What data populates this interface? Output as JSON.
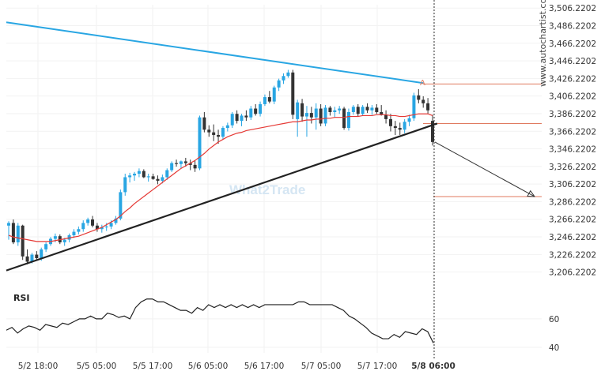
{
  "chart_data": {
    "type": "candlestick",
    "y_axis": {
      "labels": [
        "3,506.2202",
        "3,486.2202",
        "3,466.2202",
        "3,446.2202",
        "3,426.2202",
        "3,406.2202",
        "3,386.2202",
        "3,366.2202",
        "3,346.2202",
        "3,326.2202",
        "3,306.2202",
        "3,286.2202",
        "3,266.2202",
        "3,246.2202",
        "3,226.2202",
        "3,206.2202"
      ],
      "range": [
        3196,
        3510
      ],
      "position": "right"
    },
    "x_axis": {
      "labels": [
        "5/2 18:00",
        "5/5 05:00",
        "5/5 17:00",
        "5/6 05:00",
        "5/6 17:00",
        "5/7 05:00",
        "5/7 17:00",
        "5/8 06:00"
      ],
      "highlight": "5/8 06:00"
    },
    "candles": [
      [
        3259,
        3264,
        3243,
        3262
      ],
      [
        3262,
        3266,
        3238,
        3240
      ],
      [
        3240,
        3262,
        3236,
        3259
      ],
      [
        3259,
        3260,
        3220,
        3224
      ],
      [
        3224,
        3232,
        3215,
        3218
      ],
      [
        3218,
        3228,
        3216,
        3226
      ],
      [
        3226,
        3230,
        3220,
        3222
      ],
      [
        3222,
        3234,
        3219,
        3232
      ],
      [
        3232,
        3240,
        3229,
        3238
      ],
      [
        3238,
        3246,
        3236,
        3244
      ],
      [
        3244,
        3250,
        3240,
        3247
      ],
      [
        3247,
        3249,
        3238,
        3240
      ],
      [
        3240,
        3245,
        3236,
        3243
      ],
      [
        3243,
        3250,
        3240,
        3248
      ],
      [
        3248,
        3255,
        3245,
        3252
      ],
      [
        3252,
        3258,
        3249,
        3255
      ],
      [
        3255,
        3265,
        3252,
        3262
      ],
      [
        3262,
        3268,
        3259,
        3266
      ],
      [
        3266,
        3270,
        3257,
        3259
      ],
      [
        3259,
        3262,
        3252,
        3255
      ],
      [
        3255,
        3260,
        3251,
        3257
      ],
      [
        3257,
        3262,
        3253,
        3258
      ],
      [
        3258,
        3265,
        3255,
        3262
      ],
      [
        3262,
        3270,
        3260,
        3267
      ],
      [
        3267,
        3300,
        3265,
        3297
      ],
      [
        3297,
        3318,
        3293,
        3314
      ],
      [
        3314,
        3319,
        3308,
        3316
      ],
      [
        3316,
        3320,
        3310,
        3318
      ],
      [
        3318,
        3324,
        3314,
        3321
      ],
      [
        3321,
        3323,
        3313,
        3314
      ],
      [
        3314,
        3318,
        3309,
        3315
      ],
      [
        3315,
        3318,
        3311,
        3312
      ],
      [
        3312,
        3316,
        3306,
        3310
      ],
      [
        3310,
        3317,
        3307,
        3314
      ],
      [
        3314,
        3324,
        3311,
        3322
      ],
      [
        3322,
        3332,
        3320,
        3330
      ],
      [
        3330,
        3334,
        3326,
        3329
      ],
      [
        3329,
        3333,
        3324,
        3332
      ],
      [
        3332,
        3336,
        3326,
        3330
      ],
      [
        3330,
        3334,
        3322,
        3328
      ],
      [
        3328,
        3333,
        3320,
        3324
      ],
      [
        3324,
        3384,
        3322,
        3382
      ],
      [
        3382,
        3388,
        3365,
        3368
      ],
      [
        3368,
        3373,
        3360,
        3365
      ],
      [
        3365,
        3374,
        3355,
        3362
      ],
      [
        3362,
        3368,
        3352,
        3360
      ],
      [
        3360,
        3372,
        3357,
        3370
      ],
      [
        3370,
        3376,
        3366,
        3373
      ],
      [
        3373,
        3388,
        3370,
        3386
      ],
      [
        3386,
        3390,
        3375,
        3378
      ],
      [
        3378,
        3386,
        3372,
        3384
      ],
      [
        3384,
        3390,
        3378,
        3382
      ],
      [
        3382,
        3395,
        3379,
        3392
      ],
      [
        3392,
        3397,
        3384,
        3386
      ],
      [
        3386,
        3400,
        3383,
        3397
      ],
      [
        3397,
        3408,
        3395,
        3405
      ],
      [
        3405,
        3412,
        3398,
        3400
      ],
      [
        3400,
        3418,
        3397,
        3416
      ],
      [
        3416,
        3426,
        3412,
        3424
      ],
      [
        3424,
        3432,
        3420,
        3429
      ],
      [
        3429,
        3436,
        3427,
        3433
      ],
      [
        3433,
        3436,
        3380,
        3385
      ],
      [
        3380,
        3402,
        3360,
        3399
      ],
      [
        3398,
        3403,
        3377,
        3383
      ],
      [
        3383,
        3395,
        3360,
        3387
      ],
      [
        3387,
        3394,
        3375,
        3382
      ],
      [
        3382,
        3398,
        3368,
        3392
      ],
      [
        3392,
        3397,
        3372,
        3375
      ],
      [
        3375,
        3396,
        3372,
        3393
      ],
      [
        3393,
        3395,
        3384,
        3388
      ],
      [
        3388,
        3394,
        3382,
        3390
      ],
      [
        3390,
        3395,
        3386,
        3392
      ],
      [
        3392,
        3394,
        3368,
        3370
      ],
      [
        3370,
        3392,
        3367,
        3388
      ],
      [
        3388,
        3396,
        3385,
        3394
      ],
      [
        3394,
        3397,
        3383,
        3386
      ],
      [
        3386,
        3396,
        3384,
        3394
      ],
      [
        3394,
        3398,
        3387,
        3390
      ],
      [
        3390,
        3396,
        3385,
        3393
      ],
      [
        3393,
        3397,
        3386,
        3388
      ],
      [
        3388,
        3396,
        3384,
        3385
      ],
      [
        3385,
        3390,
        3375,
        3380
      ],
      [
        3380,
        3386,
        3366,
        3372
      ],
      [
        3372,
        3378,
        3362,
        3370
      ],
      [
        3370,
        3376,
        3362,
        3368
      ],
      [
        3368,
        3380,
        3364,
        3377
      ],
      [
        3377,
        3385,
        3372,
        3381
      ],
      [
        3381,
        3410,
        3378,
        3407
      ],
      [
        3407,
        3414,
        3398,
        3402
      ],
      [
        3402,
        3406,
        3393,
        3398
      ],
      [
        3398,
        3404,
        3386,
        3390
      ],
      [
        3378,
        3385,
        3350,
        3354
      ]
    ],
    "moving_average": [
      3248,
      3246,
      3245,
      3244,
      3243,
      3242,
      3241,
      3241,
      3241,
      3241,
      3242,
      3243,
      3244,
      3245,
      3246,
      3247,
      3249,
      3251,
      3253,
      3255,
      3257,
      3260,
      3263,
      3266,
      3270,
      3275,
      3279,
      3284,
      3288,
      3292,
      3296,
      3300,
      3304,
      3308,
      3312,
      3316,
      3320,
      3324,
      3327,
      3330,
      3333,
      3337,
      3341,
      3346,
      3350,
      3354,
      3357,
      3360,
      3362,
      3364,
      3365,
      3367,
      3368,
      3369,
      3370,
      3371,
      3372,
      3373,
      3374,
      3375,
      3376,
      3377,
      3377,
      3378,
      3379,
      3379,
      3380,
      3380,
      3381,
      3381,
      3382,
      3382,
      3382,
      3383,
      3383,
      3383,
      3384,
      3384,
      3384,
      3385,
      3385,
      3385,
      3384,
      3384,
      3383,
      3383,
      3384,
      3385,
      3386,
      3386,
      3386,
      3384
    ],
    "rsi": {
      "label": "RSI",
      "ticks": [
        "60",
        "40"
      ],
      "tick_values": [
        60,
        40
      ],
      "range": [
        36,
        80
      ],
      "values": [
        52,
        54,
        50,
        53,
        55,
        54,
        52,
        56,
        55,
        54,
        57,
        56,
        58,
        60,
        60,
        62,
        60,
        60,
        64,
        63,
        61,
        62,
        60,
        68,
        72,
        74,
        74,
        72,
        72,
        70,
        68,
        66,
        66,
        64,
        68,
        66,
        70,
        68,
        70,
        68,
        70,
        68,
        70,
        68,
        70,
        68,
        70,
        70,
        70,
        70,
        70,
        70,
        72,
        72,
        70,
        70,
        70,
        70,
        70,
        68,
        66,
        62,
        60,
        57,
        54,
        50,
        48,
        46,
        46,
        49,
        47,
        51,
        50,
        49,
        53,
        51,
        43
      ]
    },
    "trendlines": {
      "resistance": {
        "color": "#29a6e3",
        "from": [
          0,
          3490
        ],
        "to": [
          89,
          3421
        ]
      },
      "support": {
        "color": "#222222",
        "from": [
          0,
          3208
        ],
        "to": [
          92,
          3375
        ]
      }
    },
    "levels": [
      {
        "value": 3420,
        "color": "#e07a5f"
      },
      {
        "value": 3375,
        "color": "#e07a5f"
      },
      {
        "value": 3292,
        "color": "#e07a5f"
      }
    ],
    "projection": {
      "from": [
        92,
        3354
      ],
      "to": [
        115,
        3292
      ],
      "color": "#333333"
    },
    "marker_label": "A",
    "watermark": "What2Trade",
    "vertical_watermark": "www.autochartist.com",
    "colors": {
      "bull": "#29a6e3",
      "bear": "#333333",
      "ma": "#e53935",
      "rsi": "#222222",
      "level": "#e07a5f"
    }
  }
}
